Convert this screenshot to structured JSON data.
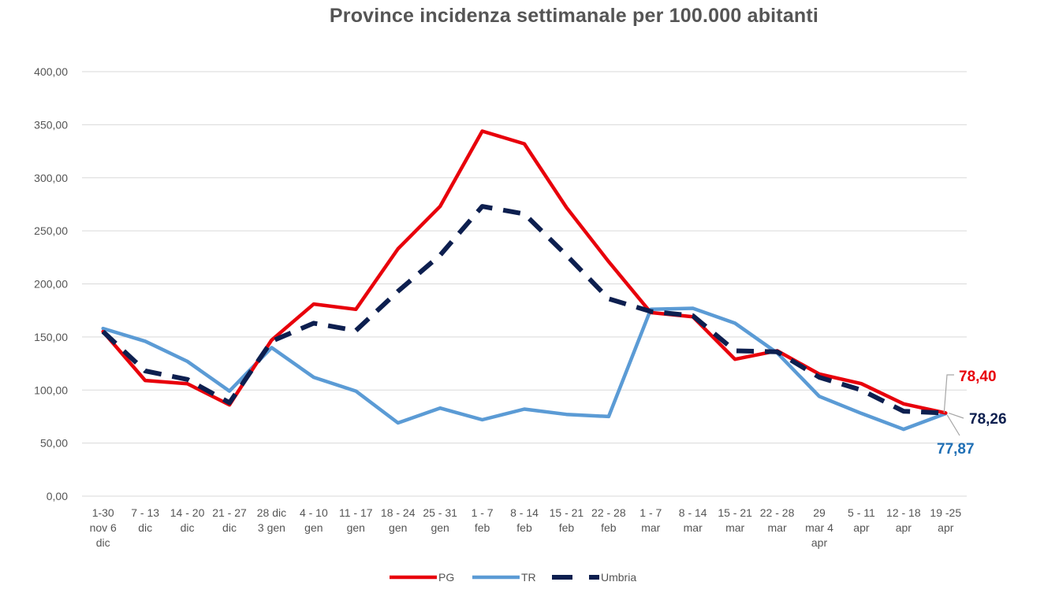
{
  "chart_data": {
    "type": "line",
    "title": "Province incidenza settimanale per 100.000 abitanti",
    "xlabel": "",
    "ylabel": "",
    "ylim": [
      0,
      400
    ],
    "yticks": [
      "0,00",
      "50,00",
      "100,00",
      "150,00",
      "200,00",
      "250,00",
      "300,00",
      "350,00",
      "400,00"
    ],
    "grid": true,
    "legend_position": "bottom",
    "categories": [
      [
        "1-30",
        "nov 6",
        "dic"
      ],
      [
        "7 - 13",
        "dic"
      ],
      [
        "14 - 20",
        "dic"
      ],
      [
        "21 - 27",
        "dic"
      ],
      [
        "28 dic",
        "3 gen"
      ],
      [
        "4 - 10",
        "gen"
      ],
      [
        "11 - 17",
        "gen"
      ],
      [
        "18 - 24",
        "gen"
      ],
      [
        "25 - 31",
        "gen"
      ],
      [
        "1 - 7",
        "feb"
      ],
      [
        "8 - 14",
        "feb"
      ],
      [
        "15 - 21",
        "feb"
      ],
      [
        "22 - 28",
        "feb"
      ],
      [
        "1 - 7",
        "mar"
      ],
      [
        "8 - 14",
        "mar"
      ],
      [
        "15 - 21",
        "mar"
      ],
      [
        "22 - 28",
        "mar"
      ],
      [
        "29",
        "mar 4",
        "apr"
      ],
      [
        "5 - 11",
        "apr"
      ],
      [
        "12 - 18",
        "apr"
      ],
      [
        "19 -25",
        "apr"
      ]
    ],
    "series": [
      {
        "name": "PG",
        "color": "#e8000b",
        "style": "solid",
        "values": [
          155,
          109,
          106,
          86,
          147,
          181,
          176,
          233,
          273,
          344,
          332,
          272,
          221,
          173,
          169,
          129,
          137,
          115,
          106,
          87,
          78.4
        ],
        "end_label": "78,40"
      },
      {
        "name": "TR",
        "color": "#5b9bd5",
        "style": "solid",
        "values": [
          158,
          146,
          127,
          99,
          140,
          112,
          99,
          69,
          83,
          72,
          82,
          77,
          75,
          176,
          177,
          163,
          135,
          94,
          78,
          63,
          77.87
        ],
        "end_label": "77,87"
      },
      {
        "name": "Umbria",
        "color": "#0d1f4f",
        "style": "dashed",
        "values": [
          155,
          118,
          110,
          88,
          146,
          163,
          156,
          193,
          227,
          273,
          266,
          227,
          186,
          174,
          170,
          137,
          136,
          112,
          100,
          80,
          78.26
        ],
        "end_label": "78,26"
      }
    ],
    "end_label_colors": {
      "PG": "#e8000b",
      "TR": "#1f6fb5",
      "Umbria": "#0d1f4f"
    }
  }
}
